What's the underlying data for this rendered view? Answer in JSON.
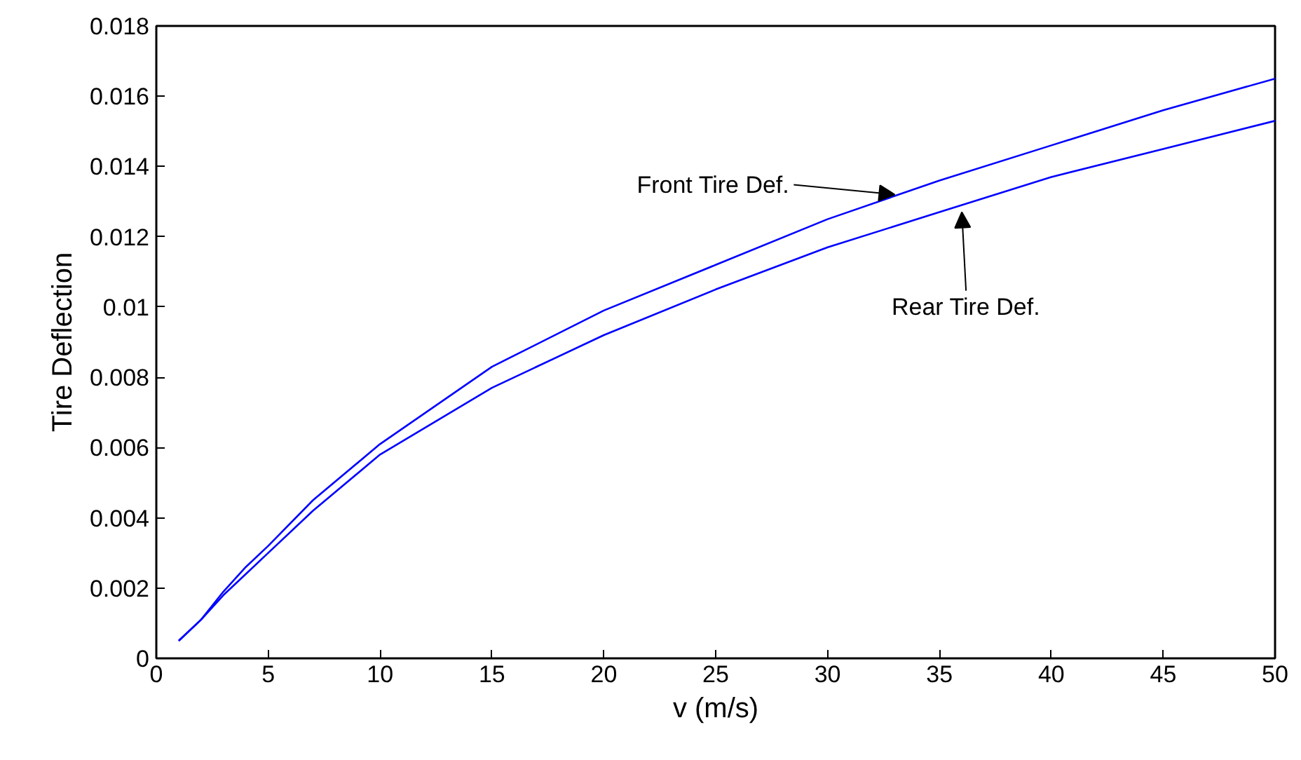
{
  "chart_data": {
    "type": "line",
    "xlabel": "v (m/s)",
    "ylabel": "Tire Deflection",
    "x": [
      1,
      2,
      3,
      4,
      5,
      7,
      10,
      15,
      20,
      25,
      30,
      35,
      40,
      45,
      50
    ],
    "series": [
      {
        "color": "#0000ff",
        "values": [
          0.0005,
          0.0011,
          0.0019,
          0.0026,
          0.0032,
          0.0045,
          0.0061,
          0.0083,
          0.0099,
          0.0112,
          0.0125,
          0.0136,
          0.0146,
          0.0156,
          0.0165
        ]
      },
      {
        "color": "#0000ff",
        "values": [
          0.0005,
          0.0011,
          0.0018,
          0.0024,
          0.003,
          0.0042,
          0.0058,
          0.0077,
          0.0092,
          0.0105,
          0.0117,
          0.0127,
          0.0137,
          0.0145,
          0.0153
        ]
      }
    ],
    "xlim": [
      0,
      50
    ],
    "xticks": [
      0,
      5,
      10,
      15,
      20,
      25,
      30,
      35,
      40,
      45,
      50
    ],
    "ylim": [
      0,
      0.018
    ],
    "yticks": [
      0,
      0.002,
      0.004,
      0.006,
      0.008,
      0.01,
      0.012,
      0.014,
      0.016,
      0.018
    ],
    "grid": false,
    "marker": "none",
    "line_style": "solid",
    "annotations": [
      {
        "text": "Front Tire Def.",
        "x": 33,
        "y": 0.0132
      },
      {
        "text": "Rear Tire Def.",
        "x": 36,
        "y": 0.0127
      }
    ]
  }
}
